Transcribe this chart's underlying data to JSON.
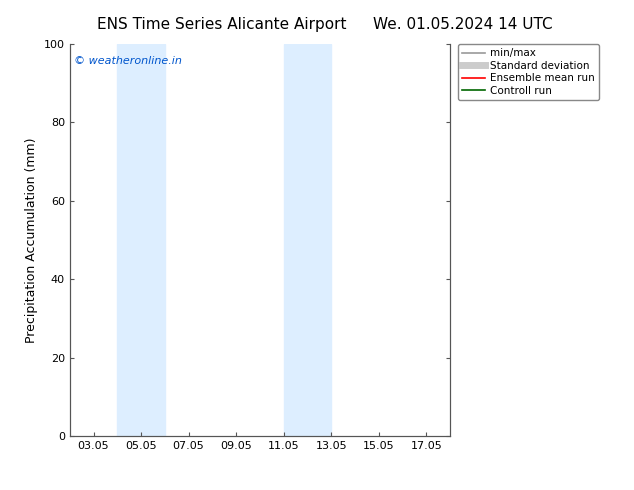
{
  "title_left": "ENS Time Series Alicante Airport",
  "title_right": "We. 01.05.2024 14 UTC",
  "ylabel": "Precipitation Accumulation (mm)",
  "ylim": [
    0,
    100
  ],
  "yticks": [
    0,
    20,
    40,
    60,
    80,
    100
  ],
  "x_tick_labels": [
    "03.05",
    "05.05",
    "07.05",
    "09.05",
    "11.05",
    "13.05",
    "15.05",
    "17.05"
  ],
  "x_tick_positions": [
    3,
    5,
    7,
    9,
    11,
    13,
    15,
    17
  ],
  "x_min": 2.0,
  "x_max": 18.0,
  "shaded_bands": [
    {
      "x_start": 4.0,
      "x_end": 6.0
    },
    {
      "x_start": 11.0,
      "x_end": 13.0
    }
  ],
  "shade_color": "#ddeeff",
  "background_color": "#ffffff",
  "watermark_text": "© weatheronline.in",
  "watermark_color": "#0055cc",
  "legend_entries": [
    {
      "label": "min/max",
      "color": "#999999",
      "lw": 1.2,
      "style": "solid"
    },
    {
      "label": "Standard deviation",
      "color": "#cccccc",
      "lw": 5,
      "style": "solid"
    },
    {
      "label": "Ensemble mean run",
      "color": "#ff0000",
      "lw": 1.2,
      "style": "solid"
    },
    {
      "label": "Controll run",
      "color": "#006600",
      "lw": 1.2,
      "style": "solid"
    }
  ],
  "title_fontsize": 11,
  "tick_fontsize": 8,
  "ylabel_fontsize": 9,
  "legend_fontsize": 7.5
}
